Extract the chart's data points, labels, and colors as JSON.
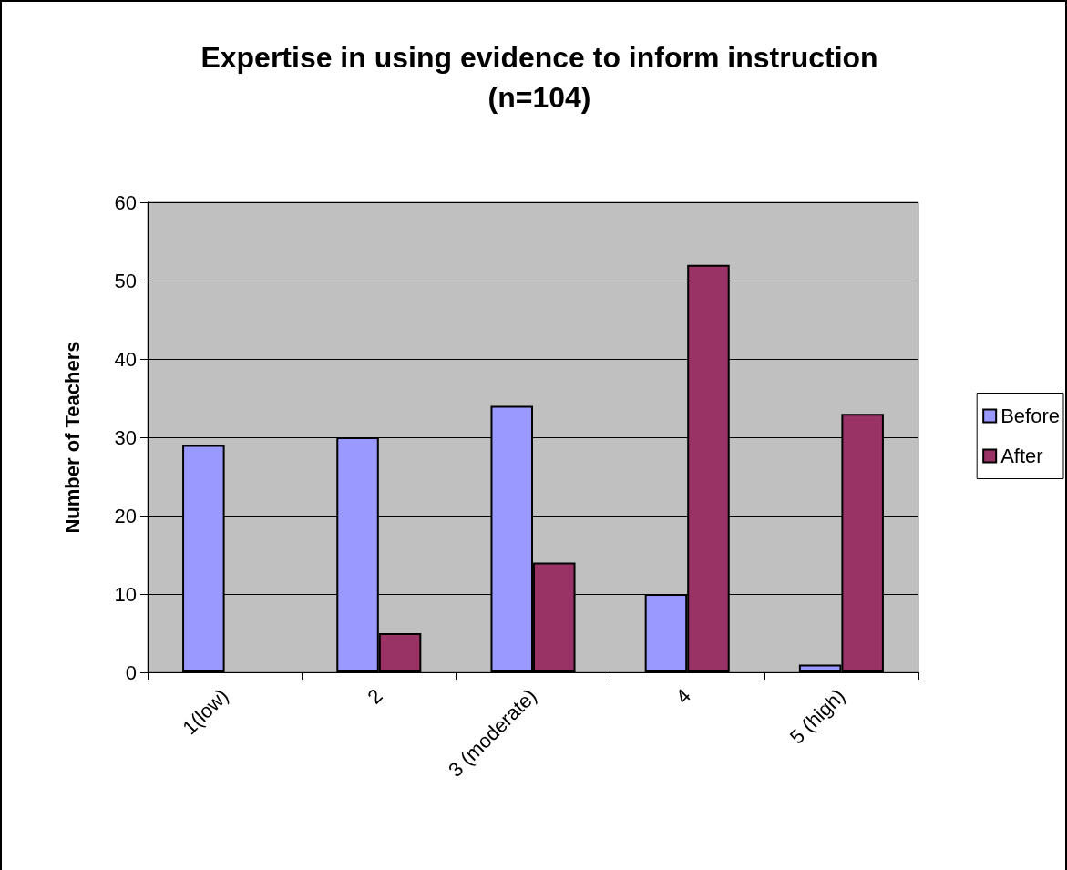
{
  "chart_data": {
    "type": "bar",
    "title": "Expertise in using evidence to inform instruction\n(n=104)",
    "ylabel": "Number of Teachers",
    "categories": [
      "1(low)",
      "2",
      "3 (moderate)",
      "4",
      "5 (high)"
    ],
    "series": [
      {
        "name": "Before",
        "color": "#9999ff",
        "values": [
          29,
          30,
          34,
          10,
          1
        ]
      },
      {
        "name": "After",
        "color": "#993366",
        "values": [
          null,
          5,
          14,
          52,
          33
        ]
      }
    ],
    "ylim": [
      0,
      60
    ],
    "yticks": [
      0,
      10,
      20,
      30,
      40,
      50,
      60
    ],
    "grid": "y",
    "legend": "right"
  }
}
